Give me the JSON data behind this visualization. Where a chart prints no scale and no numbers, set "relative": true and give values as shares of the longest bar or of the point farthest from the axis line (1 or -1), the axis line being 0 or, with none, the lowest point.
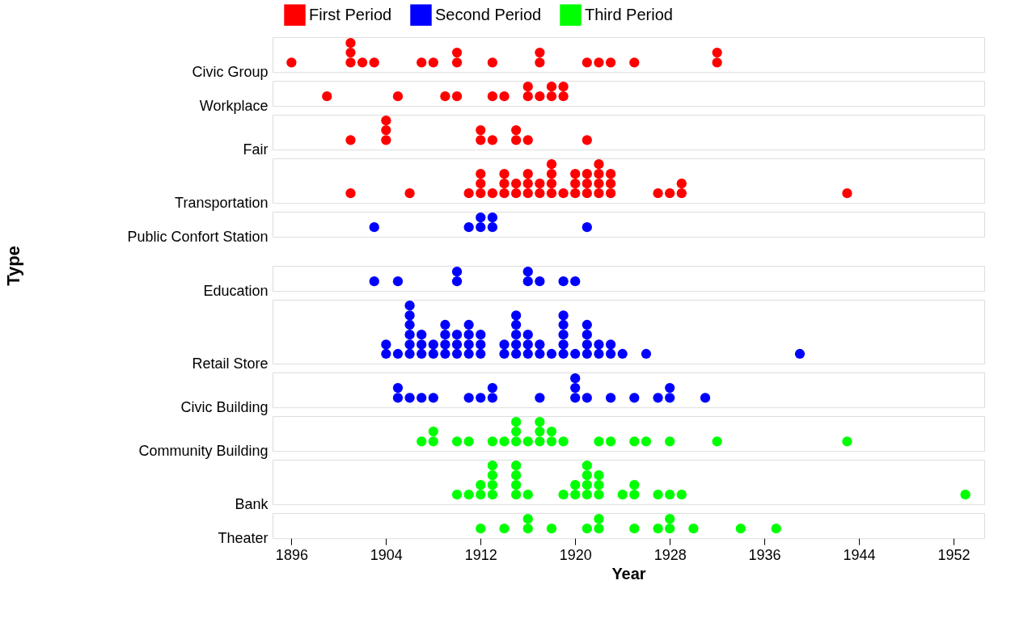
{
  "chart_data": [
    {
      "type": "scatter",
      "ylabel": "Civic Group",
      "relative": true,
      "marker": "circle",
      "xlim": [
        1894.4,
        1954.6
      ],
      "xticks": [
        1896,
        1904,
        1912,
        1920,
        1928,
        1936,
        1944,
        1952
      ],
      "tick_labels": false,
      "series": [
        {
          "name": "First Period",
          "color": "#ff0000",
          "x": [
            1896,
            1901,
            1901,
            1901,
            1902,
            1903,
            1907,
            1908,
            1910,
            1910,
            1913,
            1917,
            1917,
            1921,
            1922,
            1923,
            1925,
            1932,
            1932
          ],
          "values": [
            0.33,
            0.33,
            0.67,
            1,
            0.33,
            0.33,
            0.33,
            0.33,
            0.33,
            0.67,
            0.33,
            0.33,
            0.67,
            0.33,
            0.33,
            0.33,
            0.33,
            0.33,
            0.67
          ]
        }
      ]
    },
    {
      "type": "scatter",
      "ylabel": "Workplace",
      "relative": true,
      "marker": "circle",
      "xlim": [
        1894.4,
        1954.6
      ],
      "xticks": [
        1896,
        1904,
        1912,
        1920,
        1928,
        1936,
        1944,
        1952
      ],
      "tick_labels": false,
      "series": [
        {
          "name": "First Period",
          "color": "#ff0000",
          "x": [
            1899,
            1905,
            1909,
            1910,
            1913,
            1914,
            1916,
            1916,
            1917,
            1918,
            1918,
            1919,
            1919
          ],
          "values": [
            0.5,
            0.5,
            0.5,
            0.5,
            0.5,
            0.5,
            0.5,
            1,
            0.5,
            0.5,
            1,
            0.5,
            1
          ]
        }
      ]
    },
    {
      "type": "scatter",
      "ylabel": "Fair",
      "relative": true,
      "marker": "circle",
      "xlim": [
        1894.4,
        1954.6
      ],
      "xticks": [
        1896,
        1904,
        1912,
        1920,
        1928,
        1936,
        1944,
        1952
      ],
      "tick_labels": false,
      "series": [
        {
          "name": "First Period",
          "color": "#ff0000",
          "x": [
            1901,
            1904,
            1904,
            1904,
            1912,
            1912,
            1913,
            1915,
            1915,
            1916,
            1921
          ],
          "values": [
            0.33,
            0.33,
            0.67,
            1,
            0.33,
            0.67,
            0.33,
            0.33,
            0.67,
            0.33,
            0.33
          ]
        }
      ]
    },
    {
      "type": "scatter",
      "ylabel": "Transportation",
      "relative": true,
      "marker": "circle",
      "xlim": [
        1894.4,
        1954.6
      ],
      "xticks": [
        1896,
        1904,
        1912,
        1920,
        1928,
        1936,
        1944,
        1952
      ],
      "tick_labels": false,
      "series": [
        {
          "name": "First Period",
          "color": "#ff0000",
          "x": [
            1901,
            1906,
            1911,
            1912,
            1912,
            1912,
            1913,
            1914,
            1914,
            1914,
            1915,
            1915,
            1916,
            1916,
            1916,
            1917,
            1917,
            1918,
            1918,
            1918,
            1918,
            1919,
            1920,
            1920,
            1920,
            1921,
            1921,
            1921,
            1922,
            1922,
            1922,
            1922,
            1923,
            1923,
            1923,
            1927,
            1928,
            1929,
            1929,
            1943
          ],
          "values": [
            0.25,
            0.25,
            0.25,
            0.25,
            0.5,
            0.75,
            0.25,
            0.25,
            0.5,
            0.75,
            0.25,
            0.5,
            0.25,
            0.5,
            0.75,
            0.25,
            0.5,
            0.25,
            0.5,
            0.75,
            1,
            0.25,
            0.25,
            0.5,
            0.75,
            0.25,
            0.5,
            0.75,
            0.25,
            0.5,
            0.75,
            1,
            0.25,
            0.5,
            0.75,
            0.25,
            0.25,
            0.25,
            0.5,
            0.25
          ]
        }
      ]
    },
    {
      "type": "scatter",
      "ylabel": "Public Confort Station",
      "relative": true,
      "marker": "circle",
      "xlim": [
        1894.4,
        1954.6
      ],
      "xticks": [
        1896,
        1904,
        1912,
        1920,
        1928,
        1936,
        1944,
        1952
      ],
      "tick_labels": false,
      "series": [
        {
          "name": "Second Period",
          "color": "#0000ff",
          "x": [
            1903,
            1911,
            1912,
            1912,
            1913,
            1913,
            1921
          ],
          "values": [
            0.5,
            0.5,
            0.5,
            1,
            0.5,
            1,
            0.5
          ]
        }
      ]
    },
    {
      "type": "scatter",
      "ylabel": "Education",
      "annotations": [
        "Type"
      ],
      "relative": true,
      "marker": "circle",
      "xlim": [
        1894.4,
        1954.6
      ],
      "xticks": [
        1896,
        1904,
        1912,
        1920,
        1928,
        1936,
        1944,
        1952
      ],
      "tick_labels": false,
      "series": [
        {
          "name": "Second Period",
          "color": "#0000ff",
          "x": [
            1903,
            1905,
            1910,
            1910,
            1916,
            1916,
            1917,
            1919,
            1920
          ],
          "values": [
            0.5,
            0.5,
            0.5,
            1,
            0.5,
            1,
            0.5,
            0.5,
            0.5
          ]
        }
      ]
    },
    {
      "type": "scatter",
      "ylabel": "Retail Store",
      "relative": true,
      "marker": "circle",
      "xlim": [
        1894.4,
        1954.6
      ],
      "xticks": [
        1896,
        1904,
        1912,
        1920,
        1928,
        1936,
        1944,
        1952
      ],
      "tick_labels": false,
      "series": [
        {
          "name": "Second Period",
          "color": "#0000ff",
          "x": [
            1904,
            1904,
            1905,
            1906,
            1906,
            1906,
            1906,
            1906,
            1906,
            1907,
            1907,
            1907,
            1908,
            1908,
            1909,
            1909,
            1909,
            1909,
            1910,
            1910,
            1910,
            1911,
            1911,
            1911,
            1911,
            1912,
            1912,
            1912,
            1914,
            1914,
            1915,
            1915,
            1915,
            1915,
            1915,
            1916,
            1916,
            1916,
            1917,
            1917,
            1918,
            1919,
            1919,
            1919,
            1919,
            1919,
            1920,
            1921,
            1921,
            1921,
            1921,
            1922,
            1922,
            1923,
            1923,
            1924,
            1926,
            1939
          ],
          "values": [
            0.17,
            0.33,
            0.17,
            0.17,
            0.33,
            0.5,
            0.67,
            0.83,
            1,
            0.17,
            0.33,
            0.5,
            0.17,
            0.33,
            0.17,
            0.33,
            0.5,
            0.67,
            0.17,
            0.33,
            0.5,
            0.17,
            0.33,
            0.5,
            0.67,
            0.17,
            0.33,
            0.5,
            0.17,
            0.33,
            0.17,
            0.33,
            0.5,
            0.67,
            0.83,
            0.17,
            0.33,
            0.5,
            0.17,
            0.33,
            0.17,
            0.17,
            0.33,
            0.5,
            0.67,
            0.83,
            0.17,
            0.17,
            0.33,
            0.5,
            0.67,
            0.17,
            0.33,
            0.17,
            0.33,
            0.17,
            0.17,
            0.17
          ]
        }
      ]
    },
    {
      "type": "scatter",
      "ylabel": "Civic Building",
      "relative": true,
      "marker": "circle",
      "xlim": [
        1894.4,
        1954.6
      ],
      "xticks": [
        1896,
        1904,
        1912,
        1920,
        1928,
        1936,
        1944,
        1952
      ],
      "tick_labels": false,
      "series": [
        {
          "name": "Second Period",
          "color": "#0000ff",
          "x": [
            1905,
            1905,
            1906,
            1907,
            1908,
            1911,
            1912,
            1913,
            1913,
            1917,
            1920,
            1920,
            1920,
            1921,
            1923,
            1925,
            1927,
            1928,
            1928,
            1931
          ],
          "values": [
            0.33,
            0.67,
            0.33,
            0.33,
            0.33,
            0.33,
            0.33,
            0.33,
            0.67,
            0.33,
            0.33,
            0.67,
            1,
            0.33,
            0.33,
            0.33,
            0.33,
            0.33,
            0.67,
            0.33
          ]
        }
      ]
    },
    {
      "type": "scatter",
      "ylabel": "Community Building",
      "relative": true,
      "marker": "circle",
      "xlim": [
        1894.4,
        1954.6
      ],
      "xticks": [
        1896,
        1904,
        1912,
        1920,
        1928,
        1936,
        1944,
        1952
      ],
      "tick_labels": false,
      "series": [
        {
          "name": "Third Period",
          "color": "#00ff00",
          "x": [
            1907,
            1908,
            1908,
            1910,
            1911,
            1913,
            1914,
            1915,
            1915,
            1915,
            1916,
            1917,
            1917,
            1917,
            1918,
            1918,
            1919,
            1922,
            1923,
            1925,
            1926,
            1928,
            1932,
            1943
          ],
          "values": [
            0.33,
            0.33,
            0.67,
            0.33,
            0.33,
            0.33,
            0.33,
            0.33,
            0.67,
            1,
            0.33,
            0.33,
            0.67,
            1,
            0.33,
            0.67,
            0.33,
            0.33,
            0.33,
            0.33,
            0.33,
            0.33,
            0.33,
            0.33
          ]
        }
      ]
    },
    {
      "type": "scatter",
      "ylabel": "Bank",
      "relative": true,
      "marker": "circle",
      "xlim": [
        1894.4,
        1954.6
      ],
      "xticks": [
        1896,
        1904,
        1912,
        1920,
        1928,
        1936,
        1944,
        1952
      ],
      "tick_labels": false,
      "series": [
        {
          "name": "Third Period",
          "color": "#00ff00",
          "x": [
            1910,
            1911,
            1912,
            1912,
            1913,
            1913,
            1913,
            1913,
            1915,
            1915,
            1915,
            1915,
            1916,
            1919,
            1920,
            1920,
            1921,
            1921,
            1921,
            1921,
            1922,
            1922,
            1922,
            1924,
            1925,
            1925,
            1927,
            1928,
            1929,
            1953
          ],
          "values": [
            0.25,
            0.25,
            0.25,
            0.5,
            0.25,
            0.5,
            0.75,
            1,
            0.25,
            0.5,
            0.75,
            1,
            0.25,
            0.25,
            0.25,
            0.5,
            0.25,
            0.5,
            0.75,
            1,
            0.25,
            0.5,
            0.75,
            0.25,
            0.25,
            0.5,
            0.25,
            0.25,
            0.25,
            0.25
          ]
        }
      ]
    },
    {
      "type": "scatter",
      "ylabel": "Theater",
      "xlabel": "Year",
      "relative": true,
      "marker": "circle",
      "legend": "bottom left",
      "xlim": [
        1894.4,
        1954.6
      ],
      "xticks": [
        1896,
        1904,
        1912,
        1920,
        1928,
        1936,
        1944,
        1952
      ],
      "tick_labels": "x",
      "series": [
        {
          "name": "Third Period",
          "color": "#00ff00",
          "x": [
            1912,
            1914,
            1916,
            1916,
            1918,
            1921,
            1922,
            1922,
            1925,
            1927,
            1928,
            1928,
            1930,
            1934,
            1937
          ],
          "values": [
            0.5,
            0.5,
            0.5,
            1,
            0.5,
            0.5,
            0.5,
            1,
            0.5,
            0.5,
            0.5,
            1,
            0.5,
            0.5,
            0.5
          ]
        }
      ]
    }
  ]
}
